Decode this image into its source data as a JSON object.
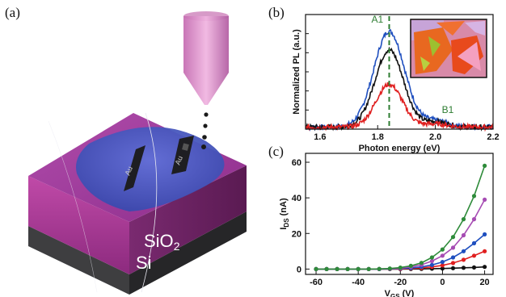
{
  "panels": {
    "a": {
      "label": "(a)",
      "substrate_top": "SiO",
      "substrate_top_sub": "2",
      "substrate_bottom": "Si",
      "electrode_1": "Au",
      "electrode_2": "Au",
      "colors": {
        "sio2": "#b0409a",
        "si": "#3a3a3a",
        "flake": "#4a5cc4",
        "electrode": "#2a2a2a",
        "objective": "#d98ac4"
      }
    },
    "b": {
      "label": "(b)",
      "peak_A": "A1",
      "peak_B": "B1",
      "xlabel": "Photon energy (eV)",
      "ylabel": "Normalized PL (a.u.)",
      "inset_name": "optical-image-inset"
    },
    "c": {
      "label": "(c)",
      "xlabel_main": "V",
      "xlabel_sub": "GS",
      "xlabel_unit": " (V)",
      "ylabel_main": "I",
      "ylabel_sub": "DS",
      "ylabel_unit": " (nA)"
    }
  },
  "chart_data": [
    {
      "type": "line",
      "panel": "b",
      "xlabel": "Photon energy (eV)",
      "ylabel": "Normalized PL (a.u.)",
      "xlim": [
        1.55,
        2.2
      ],
      "ylim": [
        0,
        1.1
      ],
      "xticks": [
        1.6,
        1.8,
        2.0,
        2.2
      ],
      "peak_position": 1.84,
      "annotations": [
        {
          "text": "A1",
          "x": 1.84
        },
        {
          "text": "B1",
          "x": 2.0
        }
      ],
      "series": [
        {
          "color": "#1f4fbf",
          "peak": 0.92,
          "width": 0.075,
          "b_peak": 0.06
        },
        {
          "color": "#111111",
          "peak": 0.74,
          "width": 0.07,
          "b_peak": 0.05
        },
        {
          "color": "#e02020",
          "peak": 0.41,
          "width": 0.065,
          "b_peak": 0.03
        }
      ]
    },
    {
      "type": "line",
      "panel": "c",
      "xlabel": "VGS (V)",
      "ylabel": "IDS (nA)",
      "xlim": [
        -65,
        24
      ],
      "ylim": [
        -3,
        65
      ],
      "xticks": [
        -60,
        -40,
        -20,
        0,
        20
      ],
      "yticks": [
        0,
        20,
        40,
        60
      ],
      "x": [
        -60,
        -55,
        -50,
        -45,
        -40,
        -35,
        -30,
        -25,
        -20,
        -15,
        -10,
        -5,
        0,
        5,
        10,
        15,
        20
      ],
      "series": [
        {
          "color": "#2e8b3a",
          "values": [
            0,
            0,
            0,
            0,
            0,
            0,
            0.1,
            0.3,
            0.8,
            1.8,
            3.5,
            6.5,
            11,
            18,
            28,
            41,
            58
          ]
        },
        {
          "color": "#a64cb3",
          "values": [
            0,
            0,
            0,
            0,
            0,
            0,
            0.1,
            0.2,
            0.5,
            1.2,
            2.4,
            4.5,
            7.5,
            12,
            19,
            28,
            39
          ]
        },
        {
          "color": "#1f4fbf",
          "values": [
            0,
            0,
            0,
            0,
            0,
            0,
            0,
            0.1,
            0.3,
            0.6,
            1.2,
            2.3,
            4,
            6.5,
            10,
            14.5,
            19.5
          ]
        },
        {
          "color": "#e02020",
          "values": [
            0,
            0,
            0,
            0,
            0,
            0,
            0,
            0.05,
            0.1,
            0.3,
            0.6,
            1.2,
            2.1,
            3.4,
            5.2,
            7.5,
            10
          ]
        },
        {
          "color": "#111111",
          "values": [
            0,
            0,
            0,
            0,
            0,
            0,
            0,
            0,
            0,
            0.05,
            0.1,
            0.2,
            0.3,
            0.5,
            0.7,
            0.9,
            1.2
          ]
        }
      ]
    }
  ]
}
